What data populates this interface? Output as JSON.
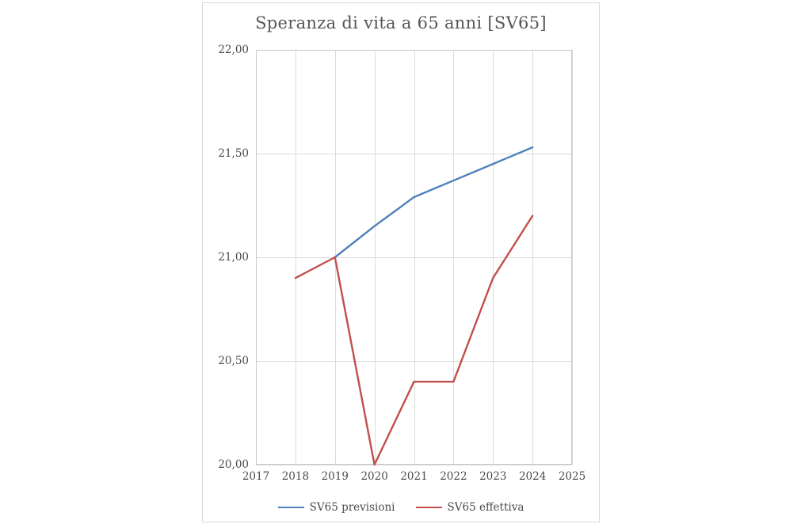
{
  "chart_data": {
    "type": "line",
    "title": "Speranza di vita a 65 anni [SV65]",
    "xlabel": "",
    "ylabel": "",
    "xlim": [
      2017,
      2025
    ],
    "ylim": [
      20,
      22
    ],
    "grid": true,
    "legend_position": "bottom",
    "x_ticks": [
      2017,
      2018,
      2019,
      2020,
      2021,
      2022,
      2023,
      2024,
      2025
    ],
    "y_ticks": [
      {
        "value": 20.0,
        "label": "20,00"
      },
      {
        "value": 20.5,
        "label": "20,50"
      },
      {
        "value": 21.0,
        "label": "21,00"
      },
      {
        "value": 21.5,
        "label": "21,50"
      },
      {
        "value": 22.0,
        "label": "22,00"
      }
    ],
    "series": [
      {
        "name": "SV65 previsioni",
        "color": "#4F81BD",
        "points": [
          {
            "x": 2019,
            "y": 21.0
          },
          {
            "x": 2020,
            "y": 21.15
          },
          {
            "x": 2021,
            "y": 21.29
          },
          {
            "x": 2022,
            "y": 21.37
          },
          {
            "x": 2023,
            "y": 21.45
          },
          {
            "x": 2024,
            "y": 21.53
          }
        ]
      },
      {
        "name": "SV65 effettiva",
        "color": "#C0504D",
        "points": [
          {
            "x": 2018,
            "y": 20.9
          },
          {
            "x": 2019,
            "y": 21.0
          },
          {
            "x": 2020,
            "y": 20.0
          },
          {
            "x": 2021,
            "y": 20.4
          },
          {
            "x": 2022,
            "y": 20.4
          },
          {
            "x": 2023,
            "y": 20.9
          },
          {
            "x": 2024,
            "y": 21.2
          }
        ]
      }
    ],
    "style": {
      "gridline_color": "#dcdcdc",
      "plot_border_color": "#c9c9c9",
      "outer_border_color": "#d9d9d9",
      "title_color": "#565656",
      "tick_color": "#4a4a4a",
      "line_width": 2.4
    }
  }
}
